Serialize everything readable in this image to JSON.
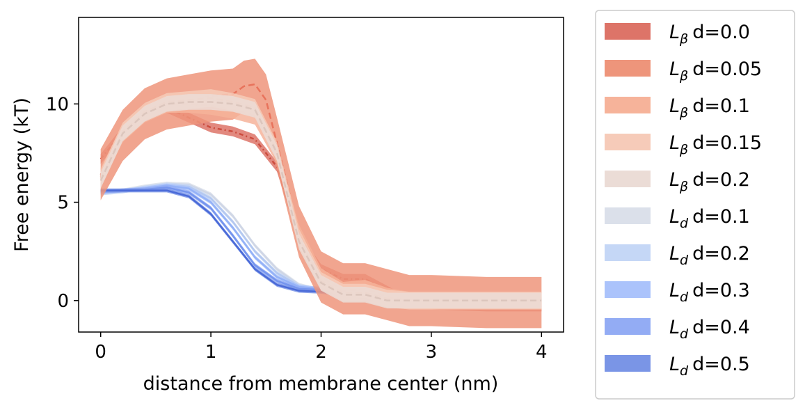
{
  "chart_data": {
    "type": "line",
    "title": "",
    "xlabel": "distance from membrane center (nm)",
    "ylabel": "Free energy (kT)",
    "xlim": [
      -0.2,
      4.2
    ],
    "ylim": [
      -1.6,
      14.4
    ],
    "xticks": [
      0,
      1,
      2,
      3,
      4
    ],
    "yticks": [
      0,
      5,
      10
    ],
    "grid": false,
    "legend_position": "outside-right",
    "series": [
      {
        "name": "d=0.0",
        "phase": "β",
        "color": "#dd7468",
        "line_color": "#cc4c3e",
        "dash": "6,4,2,4",
        "band": 0.25,
        "x": [
          0,
          0.2,
          0.4,
          0.6,
          0.8,
          1.0,
          1.2,
          1.4,
          1.6,
          1.8,
          2.0,
          2.2,
          2.4,
          2.6,
          2.8,
          3.0,
          3.5,
          4.0
        ],
        "y": [
          7.2,
          8.6,
          9.8,
          9.8,
          9.3,
          8.8,
          8.6,
          8.2,
          6.8,
          3.2,
          1.6,
          1.1,
          1.1,
          0.5,
          -0.1,
          -0.2,
          -0.3,
          -0.3
        ]
      },
      {
        "name": "d=0.05",
        "phase": "β",
        "color": "#ee957b",
        "line_color": "#e8735c",
        "dash": "9,5",
        "band": 1.3,
        "x": [
          0,
          0.2,
          0.4,
          0.6,
          0.8,
          1.0,
          1.2,
          1.3,
          1.4,
          1.5,
          1.6,
          1.8,
          2.0,
          2.2,
          2.4,
          2.6,
          2.8,
          3.0,
          3.5,
          4.0
        ],
        "y": [
          6.4,
          8.4,
          9.5,
          10.0,
          10.2,
          10.4,
          10.5,
          10.9,
          11.0,
          10.2,
          8.0,
          3.5,
          1.2,
          0.6,
          0.6,
          0.3,
          0.0,
          0.0,
          -0.1,
          -0.1
        ]
      },
      {
        "name": "d=0.1",
        "phase": "β",
        "color": "#f6b39a",
        "line_color": "#f29a7e",
        "dash": "9,5",
        "band": 0.45,
        "x": [
          0,
          0.2,
          0.4,
          0.6,
          0.8,
          1.0,
          1.2,
          1.4,
          1.6,
          1.8,
          2.0,
          2.2,
          2.4,
          2.6,
          2.8,
          3.0,
          3.5,
          4.0
        ],
        "y": [
          6.3,
          8.5,
          9.5,
          10.0,
          10.0,
          9.9,
          9.7,
          9.4,
          7.4,
          3.4,
          1.2,
          0.5,
          0.6,
          0.2,
          0.0,
          0.0,
          0.0,
          0.0
        ]
      },
      {
        "name": "d=0.15",
        "phase": "β",
        "color": "#f6cbb9",
        "line_color": "#f4b8a2",
        "dash": "9,5",
        "band": 0.45,
        "x": [
          0,
          0.2,
          0.4,
          0.6,
          0.8,
          1.0,
          1.2,
          1.4,
          1.6,
          1.8,
          2.0,
          2.2,
          2.4,
          2.6,
          2.8,
          3.0,
          3.5,
          4.0
        ],
        "y": [
          6.2,
          8.6,
          9.6,
          10.1,
          10.2,
          10.3,
          10.1,
          9.8,
          7.6,
          3.2,
          1.0,
          0.4,
          0.4,
          0.1,
          0.0,
          0.0,
          0.0,
          0.0
        ]
      },
      {
        "name": "d=0.2",
        "phase": "β",
        "color": "#ebdcd6",
        "line_color": "#dcc6bd",
        "dash": "9,5",
        "band": 0.4,
        "x": [
          0,
          0.2,
          0.4,
          0.6,
          0.8,
          1.0,
          1.2,
          1.4,
          1.6,
          1.8,
          2.0,
          2.2,
          2.4,
          2.6,
          2.8,
          3.0,
          3.5,
          4.0
        ],
        "y": [
          6.1,
          8.5,
          9.5,
          10.0,
          10.1,
          10.1,
          10.0,
          9.7,
          7.5,
          3.0,
          0.9,
          0.3,
          0.3,
          0.0,
          0.0,
          0.0,
          0.0,
          0.0
        ]
      },
      {
        "name": "d=0.1",
        "phase": "d",
        "color": "#dbe0ea",
        "line_color": "#cfd6e6",
        "dash": "",
        "band": 0.1,
        "x": [
          0,
          0.2,
          0.4,
          0.6,
          0.8,
          1.0,
          1.2,
          1.4,
          1.6,
          1.8,
          2.0,
          2.2,
          2.4,
          2.6,
          2.8,
          3.0,
          3.5,
          4.0
        ],
        "y": [
          5.5,
          5.6,
          5.8,
          5.95,
          5.9,
          5.4,
          4.3,
          2.8,
          1.6,
          0.8,
          0.5,
          0.3,
          0.2,
          0.1,
          0.0,
          0.0,
          0.0,
          0.0
        ]
      },
      {
        "name": "d=0.2",
        "phase": "d",
        "color": "#c5d7f6",
        "line_color": "#b4c8f0",
        "dash": "",
        "band": 0.1,
        "x": [
          0,
          0.2,
          0.4,
          0.6,
          0.8,
          1.0,
          1.2,
          1.4,
          1.6,
          1.8,
          2.0,
          2.2,
          2.4,
          2.6,
          2.8,
          3.0,
          3.5,
          4.0
        ],
        "y": [
          5.45,
          5.55,
          5.75,
          5.9,
          5.8,
          5.2,
          4.0,
          2.5,
          1.4,
          0.75,
          0.55,
          0.3,
          0.15,
          0.05,
          0.0,
          0.0,
          0.0,
          0.0
        ]
      },
      {
        "name": "d=0.3",
        "phase": "d",
        "color": "#abc3fb",
        "line_color": "#94b2f7",
        "dash": "",
        "band": 0.1,
        "x": [
          0,
          0.2,
          0.4,
          0.6,
          0.8,
          1.0,
          1.2,
          1.4,
          1.6,
          1.8,
          2.0,
          2.2,
          2.4,
          2.6,
          2.8,
          3.0,
          3.5,
          4.0
        ],
        "y": [
          5.5,
          5.6,
          5.7,
          5.85,
          5.7,
          5.0,
          3.7,
          2.2,
          1.2,
          0.7,
          0.6,
          0.35,
          0.15,
          0.05,
          -0.05,
          0.0,
          0.0,
          0.0
        ]
      },
      {
        "name": "d=0.4",
        "phase": "d",
        "color": "#93acf4",
        "line_color": "#7595ee",
        "dash": "",
        "band": 0.1,
        "x": [
          0,
          0.2,
          0.4,
          0.6,
          0.8,
          1.0,
          1.2,
          1.4,
          1.6,
          1.8,
          2.0,
          2.2,
          2.4,
          2.6,
          2.8,
          3.0,
          3.5,
          4.0
        ],
        "y": [
          5.55,
          5.6,
          5.65,
          5.75,
          5.5,
          4.7,
          3.3,
          1.8,
          1.0,
          0.6,
          0.55,
          0.35,
          0.15,
          0.0,
          -0.05,
          0.0,
          0.0,
          0.05
        ]
      },
      {
        "name": "d=0.5",
        "phase": "d",
        "color": "#7a95e6",
        "line_color": "#4a6ad8",
        "dash": "",
        "band": 0.1,
        "x": [
          0,
          0.2,
          0.4,
          0.6,
          0.8,
          1.0,
          1.2,
          1.4,
          1.6,
          1.8,
          2.0,
          2.2,
          2.4,
          2.6,
          2.8,
          3.0,
          3.5,
          4.0
        ],
        "y": [
          5.6,
          5.6,
          5.6,
          5.6,
          5.3,
          4.4,
          3.0,
          1.6,
          0.8,
          0.5,
          0.45,
          0.3,
          0.1,
          0.0,
          -0.05,
          0.0,
          0.0,
          0.05
        ]
      }
    ]
  }
}
